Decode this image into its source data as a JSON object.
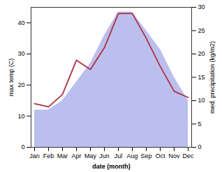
{
  "chart_data": {
    "type": "line",
    "xlabel": "date (month)",
    "ylabel": "max temp (C)",
    "y2label": "med. precipitation (kg/m2)",
    "categories": [
      "Jan",
      "Feb",
      "Mar",
      "Apr",
      "May",
      "Jun",
      "Jul",
      "Aug",
      "Sep",
      "Oct",
      "Nov",
      "Dec"
    ],
    "series": [
      {
        "type": "area",
        "axis": "y2",
        "color": "#bbbfee",
        "values": [
          8,
          8,
          10,
          14,
          18,
          24,
          29,
          29,
          25,
          21,
          15,
          10
        ]
      },
      {
        "type": "line",
        "color": "#b03040",
        "values": [
          14,
          13,
          17,
          28,
          25,
          32,
          43,
          43,
          35,
          26,
          18,
          16
        ]
      }
    ],
    "ylim": [
      0,
      45
    ],
    "yticks": [
      0,
      10,
      20,
      30,
      40
    ],
    "y2lim": [
      0,
      30
    ],
    "y2ticks": [
      0,
      5,
      10,
      15,
      20,
      25,
      30
    ]
  }
}
